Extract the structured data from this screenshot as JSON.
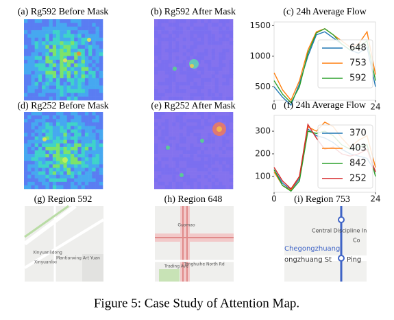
{
  "figure": {
    "caption": "Figure 5: Case Study of Attention Map.",
    "panels": [
      "(a) Rg592 Before Mask",
      "(b) Rg592 After Mask",
      "(d) Rg252 Before Mask",
      "(e) Rg252 After Mask",
      "(g) Region 592",
      "(h) Region 648",
      "(i) Region 753"
    ]
  },
  "maps": [
    [
      "Xinyuanlidong",
      "Xinyuanlixi",
      "Mantianxing Art Yuan"
    ],
    [
      "Guomao",
      "Tonghuihe North Rd",
      "Trading Ave"
    ],
    [
      "Central Discipline In",
      "Chegongzhuang",
      "ongzhuang St",
      "Ping",
      "Co"
    ]
  ],
  "chart_data": [
    {
      "type": "line",
      "title": "(c) 24h Average Flow",
      "x": [
        0,
        2,
        4,
        6,
        8,
        10,
        12,
        14,
        16,
        18,
        20,
        22,
        24
      ],
      "xlim": [
        0,
        24
      ],
      "xticks": [
        0,
        24
      ],
      "ylim": [
        280,
        1560
      ],
      "yticks": [
        500,
        1000,
        1500
      ],
      "legend": "right",
      "series": [
        {
          "name": "648",
          "color": "#1f77b4",
          "values": [
            500,
            330,
            200,
            550,
            1000,
            1350,
            1400,
            1300,
            1200,
            1100,
            1050,
            1150,
            500
          ]
        },
        {
          "name": "753",
          "color": "#ff7f0e",
          "values": [
            730,
            450,
            280,
            600,
            1100,
            1400,
            1450,
            1350,
            1250,
            1150,
            1200,
            1400,
            700
          ]
        },
        {
          "name": "592",
          "color": "#2ca02c",
          "values": [
            600,
            380,
            240,
            500,
            1050,
            1380,
            1450,
            1350,
            1200,
            1100,
            1150,
            1250,
            600
          ]
        }
      ]
    },
    {
      "type": "line",
      "title": "(f) 24h Average Flow",
      "x": [
        0,
        2,
        4,
        6,
        8,
        10,
        12,
        14,
        16,
        18,
        20,
        22,
        24
      ],
      "xlim": [
        0,
        24
      ],
      "xticks": [
        0,
        24
      ],
      "ylim": [
        30,
        370
      ],
      "yticks": [
        100,
        200,
        300
      ],
      "legend": "right",
      "series": [
        {
          "name": "370",
          "color": "#1f77b4",
          "values": [
            130,
            70,
            40,
            90,
            310,
            280,
            270,
            250,
            220,
            200,
            190,
            180,
            120
          ]
        },
        {
          "name": "403",
          "color": "#ff7f0e",
          "values": [
            120,
            60,
            40,
            100,
            320,
            300,
            340,
            320,
            270,
            230,
            260,
            280,
            140
          ]
        },
        {
          "name": "842",
          "color": "#2ca02c",
          "values": [
            130,
            60,
            35,
            80,
            300,
            290,
            300,
            280,
            240,
            220,
            230,
            240,
            100
          ]
        },
        {
          "name": "252",
          "color": "#d62728",
          "values": [
            140,
            80,
            45,
            100,
            330,
            270,
            220,
            230,
            200,
            190,
            200,
            220,
            120
          ]
        }
      ]
    }
  ]
}
